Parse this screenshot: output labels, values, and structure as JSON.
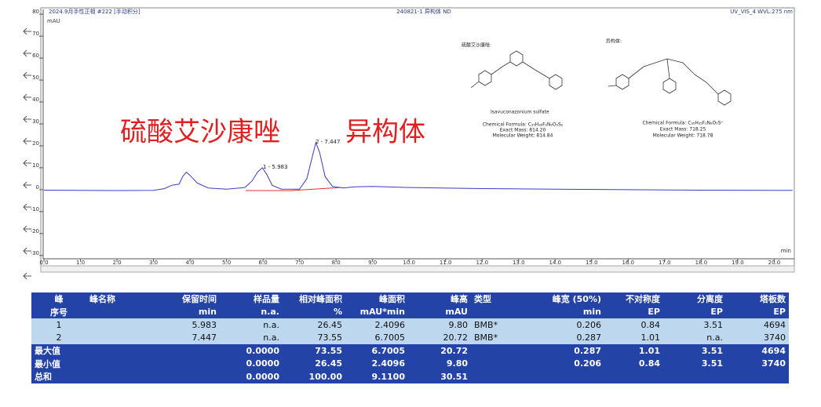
{
  "header": {
    "left": "2024.9月手性正相 #222 [手动积分]",
    "center": "240821-1 异构体 ND",
    "right": "UV_VIS_4 WVL:275 nm"
  },
  "chart_data": {
    "type": "line",
    "y_label": "mAU",
    "x_label": "min",
    "color": "#3c3cc8",
    "x": [
      0,
      1,
      2,
      3,
      3.3,
      3.5,
      3.6,
      3.7,
      3.8,
      3.9,
      4.0,
      4.2,
      4.5,
      5.0,
      5.5,
      5.7,
      5.85,
      5.983,
      6.1,
      6.25,
      6.5,
      7.0,
      7.2,
      7.35,
      7.447,
      7.55,
      7.7,
      7.9,
      8.2,
      8.5,
      9,
      10,
      12,
      14,
      16,
      18,
      20,
      20.5
    ],
    "values": [
      -0.2,
      -0.3,
      -0.4,
      -0.3,
      0.5,
      2,
      2.3,
      2.5,
      6,
      8,
      6.5,
      3,
      0.8,
      0.2,
      1,
      4,
      8,
      10,
      7,
      2,
      0.3,
      0.2,
      5,
      15,
      21.5,
      17,
      6,
      1.5,
      0.8,
      1.3,
      1.5,
      1,
      0.5,
      0.2,
      0,
      -0.2,
      -0.3,
      -0.3
    ],
    "xlim": [
      0,
      20.55
    ],
    "ylim": [
      -31.5,
      82.2
    ],
    "xticks": [
      {
        "value": 0,
        "label": "0.0"
      },
      {
        "value": 1,
        "label": "1.0"
      },
      {
        "value": 2,
        "label": "2.0"
      },
      {
        "value": 3,
        "label": "3.0"
      },
      {
        "value": 4,
        "label": "4.0"
      },
      {
        "value": 5,
        "label": "5.0"
      },
      {
        "value": 6,
        "label": "6.0"
      },
      {
        "value": 7,
        "label": "7.0"
      },
      {
        "value": 8,
        "label": "8.0"
      },
      {
        "value": 9,
        "label": "9.0"
      },
      {
        "value": 10,
        "label": "10.0"
      },
      {
        "value": 11,
        "label": "11.0"
      },
      {
        "value": 12,
        "label": "12.0"
      },
      {
        "value": 13,
        "label": "13.0"
      },
      {
        "value": 14,
        "label": "14.0"
      },
      {
        "value": 15,
        "label": "15.0"
      },
      {
        "value": 16,
        "label": "16.0"
      },
      {
        "value": 17,
        "label": "17.0"
      },
      {
        "value": 18,
        "label": "18.0"
      },
      {
        "value": 19,
        "label": "19.0"
      },
      {
        "value": 20,
        "label": "20.0"
      }
    ],
    "yticks": [
      -30,
      -20,
      -10,
      0,
      10,
      20,
      30,
      40,
      50,
      60,
      70,
      80
    ],
    "peak_labels": [
      "1 - 5.983",
      "2 - 7.447"
    ],
    "annotations": [
      "硫酸艾沙康唑",
      "异构体"
    ]
  },
  "structures": [
    {
      "title": "硫酸艾沙康唑:",
      "name": "Isavuconazonium sulfate",
      "formula": "Chemical Formula: C₃₅H₃₆F₂N₈O₉S₂",
      "mass": "Exact Mass: 814.20",
      "weight": "Molecular Weight: 814.84"
    },
    {
      "title": "异构体:",
      "formula": "Chemical Formula: C₃₅H₃₅F₂N₈O₅S⁺",
      "mass": "Exact Mass: 718.25",
      "weight": "Molecular Weight: 718.78"
    }
  ],
  "table": {
    "header": [
      [
        "峰",
        "峰名称",
        "保留时间",
        "样品量",
        "相对峰面积",
        "峰面积",
        "峰高",
        "类型",
        "峰宽 (50%)",
        "不对称度",
        "分离度",
        "塔板数"
      ],
      [
        "序号",
        null,
        "min",
        "n.a.",
        "%",
        "mAU*min",
        "mAU",
        null,
        "min",
        "EP",
        "EP",
        "EP"
      ]
    ],
    "rows": [
      [
        "1",
        null,
        "5.983",
        "n.a.",
        "26.45",
        "2.4096",
        "9.80",
        "BMB*",
        "0.206",
        "0.84",
        "3.51",
        "4694"
      ],
      [
        "2",
        null,
        "7.447",
        "n.a.",
        "73.55",
        "6.7005",
        "20.72",
        "BMB*",
        "0.287",
        "1.01",
        "n.a.",
        "3740"
      ]
    ],
    "summary": [
      [
        "最大值",
        null,
        null,
        "0.0000",
        "73.55",
        "6.7005",
        "20.72",
        null,
        "0.287",
        "1.01",
        "3.51",
        "4694"
      ],
      [
        "最小值",
        null,
        null,
        "0.0000",
        "26.45",
        "2.4096",
        "9.80",
        null,
        "0.206",
        "0.84",
        "3.51",
        "3740"
      ],
      [
        "总和",
        null,
        null,
        "0.0000",
        "100.00",
        "9.1100",
        "30.51",
        null,
        null,
        null,
        null,
        null
      ]
    ]
  }
}
